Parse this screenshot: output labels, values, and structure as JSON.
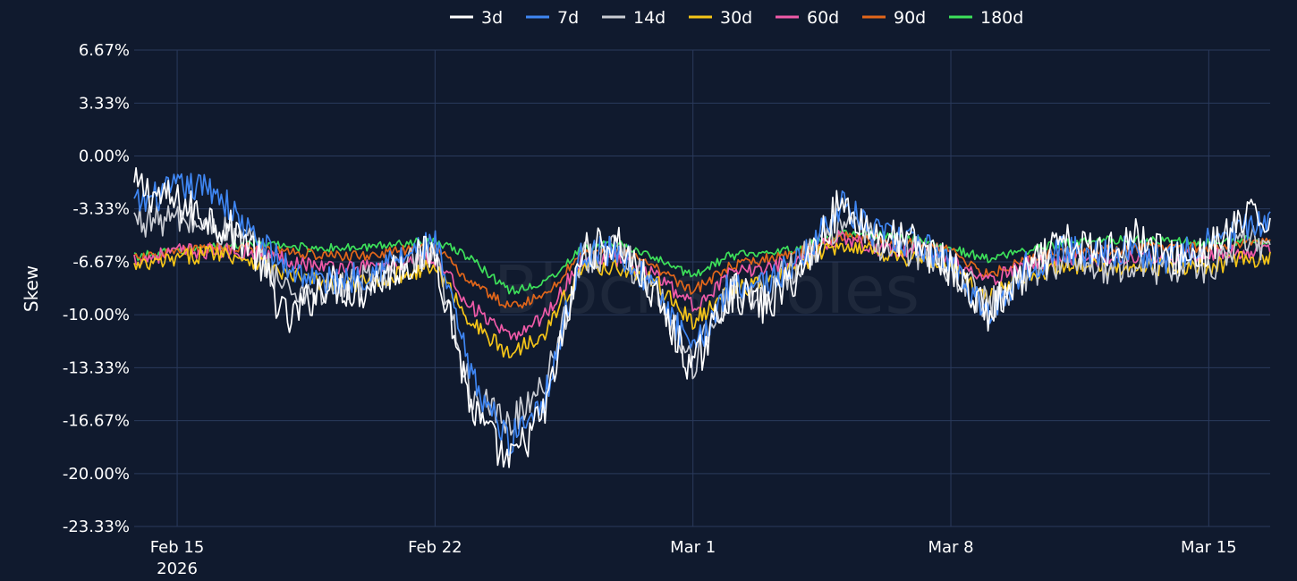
{
  "watermark": "Blockscholes",
  "chart_data": {
    "type": "line",
    "ylabel": "Skew",
    "ylim": [
      -23.33,
      6.67
    ],
    "y_ticks": [
      6.67,
      3.33,
      0.0,
      -3.33,
      -6.67,
      -10.0,
      -13.33,
      -16.67,
      -20.0,
      -23.33
    ],
    "y_tick_labels": [
      "6.67%",
      "3.33%",
      "0.00%",
      "-3.33%",
      "-6.67%",
      "-10.00%",
      "-13.33%",
      "-16.67%",
      "-20.00%",
      "-23.33%"
    ],
    "x_ticks": [
      "2026-02-15",
      "2026-02-22",
      "2026-03-01",
      "2026-03-08",
      "2026-03-15"
    ],
    "x_tick_labels": [
      "Feb 15",
      "Feb 22",
      "Mar 1",
      "Mar 8",
      "Mar 15"
    ],
    "x_tick_sublabels": [
      "2026",
      "",
      "",
      "",
      ""
    ],
    "grid": true,
    "legend_position": "top-center",
    "series": [
      {
        "name": "3d",
        "color": "#ffffff",
        "x": [
          "2026-02-14",
          "2026-02-15",
          "2026-02-16",
          "2026-02-17",
          "2026-02-18",
          "2026-02-19",
          "2026-02-20",
          "2026-02-21",
          "2026-02-22",
          "2026-02-23",
          "2026-02-24",
          "2026-02-25",
          "2026-02-26",
          "2026-02-27",
          "2026-02-28",
          "2026-03-01",
          "2026-03-02",
          "2026-03-03",
          "2026-03-04",
          "2026-03-05",
          "2026-03-06",
          "2026-03-07",
          "2026-03-08",
          "2026-03-09",
          "2026-03-10",
          "2026-03-11",
          "2026-03-12",
          "2026-03-13",
          "2026-03-14",
          "2026-03-15",
          "2026-03-16"
        ],
        "y": [
          -2.0,
          -3.0,
          -4.0,
          -5.5,
          -10.5,
          -8.0,
          -8.5,
          -7.0,
          -6.0,
          -16.0,
          -19.5,
          -16.0,
          -6.0,
          -5.5,
          -9.0,
          -13.5,
          -8.5,
          -9.5,
          -7.0,
          -3.0,
          -5.0,
          -5.5,
          -7.0,
          -10.0,
          -7.5,
          -5.5,
          -6.0,
          -5.0,
          -6.5,
          -6.0,
          -4.0
        ]
      },
      {
        "name": "7d",
        "color": "#3f86f2",
        "x": [
          "2026-02-14",
          "2026-02-15",
          "2026-02-16",
          "2026-02-17",
          "2026-02-18",
          "2026-02-19",
          "2026-02-20",
          "2026-02-21",
          "2026-02-22",
          "2026-02-23",
          "2026-02-24",
          "2026-02-25",
          "2026-02-26",
          "2026-02-27",
          "2026-02-28",
          "2026-03-01",
          "2026-03-02",
          "2026-03-03",
          "2026-03-04",
          "2026-03-05",
          "2026-03-06",
          "2026-03-07",
          "2026-03-08",
          "2026-03-09",
          "2026-03-10",
          "2026-03-11",
          "2026-03-12",
          "2026-03-13",
          "2026-03-14",
          "2026-03-15",
          "2026-03-16"
        ],
        "y": [
          -3.0,
          -2.0,
          -2.0,
          -5.0,
          -7.0,
          -8.0,
          -7.5,
          -6.5,
          -5.5,
          -14.0,
          -18.0,
          -15.0,
          -6.0,
          -6.0,
          -8.5,
          -12.5,
          -8.0,
          -8.0,
          -6.5,
          -3.0,
          -5.0,
          -5.5,
          -6.5,
          -10.0,
          -7.0,
          -6.0,
          -6.0,
          -6.0,
          -6.5,
          -5.5,
          -4.5
        ]
      },
      {
        "name": "14d",
        "color": "#c9ccd3",
        "x": [
          "2026-02-14",
          "2026-02-15",
          "2026-02-16",
          "2026-02-17",
          "2026-02-18",
          "2026-02-19",
          "2026-02-20",
          "2026-02-21",
          "2026-02-22",
          "2026-02-23",
          "2026-02-24",
          "2026-02-25",
          "2026-02-26",
          "2026-02-27",
          "2026-02-28",
          "2026-03-01",
          "2026-03-02",
          "2026-03-03",
          "2026-03-04",
          "2026-03-05",
          "2026-03-06",
          "2026-03-07",
          "2026-03-08",
          "2026-03-09",
          "2026-03-10",
          "2026-03-11",
          "2026-03-12",
          "2026-03-13",
          "2026-03-14",
          "2026-03-15",
          "2026-03-16"
        ],
        "y": [
          -4.0,
          -4.0,
          -4.5,
          -5.5,
          -8.5,
          -8.5,
          -8.0,
          -7.0,
          -6.5,
          -15.0,
          -17.0,
          -14.0,
          -6.5,
          -6.0,
          -8.5,
          -13.0,
          -8.5,
          -8.5,
          -6.5,
          -4.0,
          -5.5,
          -6.0,
          -7.0,
          -9.5,
          -7.5,
          -6.5,
          -7.0,
          -7.0,
          -7.0,
          -7.0,
          -5.5
        ]
      },
      {
        "name": "30d",
        "color": "#f5c518",
        "x": [
          "2026-02-14",
          "2026-02-15",
          "2026-02-16",
          "2026-02-17",
          "2026-02-18",
          "2026-02-19",
          "2026-02-20",
          "2026-02-21",
          "2026-02-22",
          "2026-02-23",
          "2026-02-24",
          "2026-02-25",
          "2026-02-26",
          "2026-02-27",
          "2026-02-28",
          "2026-03-01",
          "2026-03-02",
          "2026-03-03",
          "2026-03-04",
          "2026-03-05",
          "2026-03-06",
          "2026-03-07",
          "2026-03-08",
          "2026-03-09",
          "2026-03-10",
          "2026-03-11",
          "2026-03-12",
          "2026-03-13",
          "2026-03-14",
          "2026-03-15",
          "2026-03-16"
        ],
        "y": [
          -7.0,
          -6.5,
          -6.0,
          -6.5,
          -7.5,
          -8.0,
          -8.0,
          -7.5,
          -7.0,
          -10.5,
          -12.5,
          -11.0,
          -7.0,
          -7.0,
          -8.0,
          -10.5,
          -8.5,
          -8.0,
          -6.8,
          -5.5,
          -6.0,
          -6.5,
          -7.0,
          -9.0,
          -7.5,
          -7.0,
          -7.0,
          -7.0,
          -7.0,
          -7.0,
          -6.5
        ]
      },
      {
        "name": "60d",
        "color": "#ef5aa8",
        "x": [
          "2026-02-14",
          "2026-02-15",
          "2026-02-16",
          "2026-02-17",
          "2026-02-18",
          "2026-02-19",
          "2026-02-20",
          "2026-02-21",
          "2026-02-22",
          "2026-02-23",
          "2026-02-24",
          "2026-02-25",
          "2026-02-26",
          "2026-02-27",
          "2026-02-28",
          "2026-03-01",
          "2026-03-02",
          "2026-03-03",
          "2026-03-04",
          "2026-03-05",
          "2026-03-06",
          "2026-03-07",
          "2026-03-08",
          "2026-03-09",
          "2026-03-10",
          "2026-03-11",
          "2026-03-12",
          "2026-03-13",
          "2026-03-14",
          "2026-03-15",
          "2026-03-16"
        ],
        "y": [
          -6.5,
          -6.0,
          -6.0,
          -6.0,
          -6.5,
          -7.0,
          -7.0,
          -6.8,
          -6.5,
          -9.5,
          -11.5,
          -10.0,
          -6.5,
          -6.5,
          -7.5,
          -9.5,
          -7.5,
          -7.0,
          -6.5,
          -5.0,
          -5.8,
          -6.0,
          -6.5,
          -8.0,
          -6.8,
          -6.5,
          -6.5,
          -6.3,
          -6.3,
          -6.3,
          -6.0
        ]
      },
      {
        "name": "90d",
        "color": "#e2661a",
        "x": [
          "2026-02-14",
          "2026-02-15",
          "2026-02-16",
          "2026-02-17",
          "2026-02-18",
          "2026-02-19",
          "2026-02-20",
          "2026-02-21",
          "2026-02-22",
          "2026-02-23",
          "2026-02-24",
          "2026-02-25",
          "2026-02-26",
          "2026-02-27",
          "2026-02-28",
          "2026-03-01",
          "2026-03-02",
          "2026-03-03",
          "2026-03-04",
          "2026-03-05",
          "2026-03-06",
          "2026-03-07",
          "2026-03-08",
          "2026-03-09",
          "2026-03-10",
          "2026-03-11",
          "2026-03-12",
          "2026-03-13",
          "2026-03-14",
          "2026-03-15",
          "2026-03-16"
        ],
        "y": [
          -6.5,
          -6.0,
          -5.8,
          -5.8,
          -6.0,
          -6.3,
          -6.3,
          -6.0,
          -5.8,
          -8.0,
          -9.5,
          -8.8,
          -6.0,
          -6.0,
          -7.0,
          -8.5,
          -7.0,
          -6.5,
          -6.0,
          -5.0,
          -5.3,
          -5.5,
          -6.0,
          -7.5,
          -6.5,
          -6.0,
          -6.0,
          -5.8,
          -5.8,
          -5.8,
          -5.5
        ]
      },
      {
        "name": "180d",
        "color": "#3de05a",
        "x": [
          "2026-02-14",
          "2026-02-15",
          "2026-02-16",
          "2026-02-17",
          "2026-02-18",
          "2026-02-19",
          "2026-02-20",
          "2026-02-21",
          "2026-02-22",
          "2026-02-23",
          "2026-02-24",
          "2026-02-25",
          "2026-02-26",
          "2026-02-27",
          "2026-02-28",
          "2026-03-01",
          "2026-03-02",
          "2026-03-03",
          "2026-03-04",
          "2026-03-05",
          "2026-03-06",
          "2026-03-07",
          "2026-03-08",
          "2026-03-09",
          "2026-03-10",
          "2026-03-11",
          "2026-03-12",
          "2026-03-13",
          "2026-03-14",
          "2026-03-15",
          "2026-03-16"
        ],
        "y": [
          -6.3,
          -6.0,
          -5.7,
          -5.5,
          -5.7,
          -5.8,
          -5.8,
          -5.5,
          -5.3,
          -6.5,
          -8.5,
          -8.0,
          -5.8,
          -5.5,
          -6.5,
          -7.5,
          -6.3,
          -6.0,
          -5.8,
          -4.8,
          -5.0,
          -5.2,
          -5.8,
          -6.5,
          -6.0,
          -5.5,
          -5.3,
          -5.3,
          -5.3,
          -5.5,
          -5.3
        ]
      }
    ]
  }
}
